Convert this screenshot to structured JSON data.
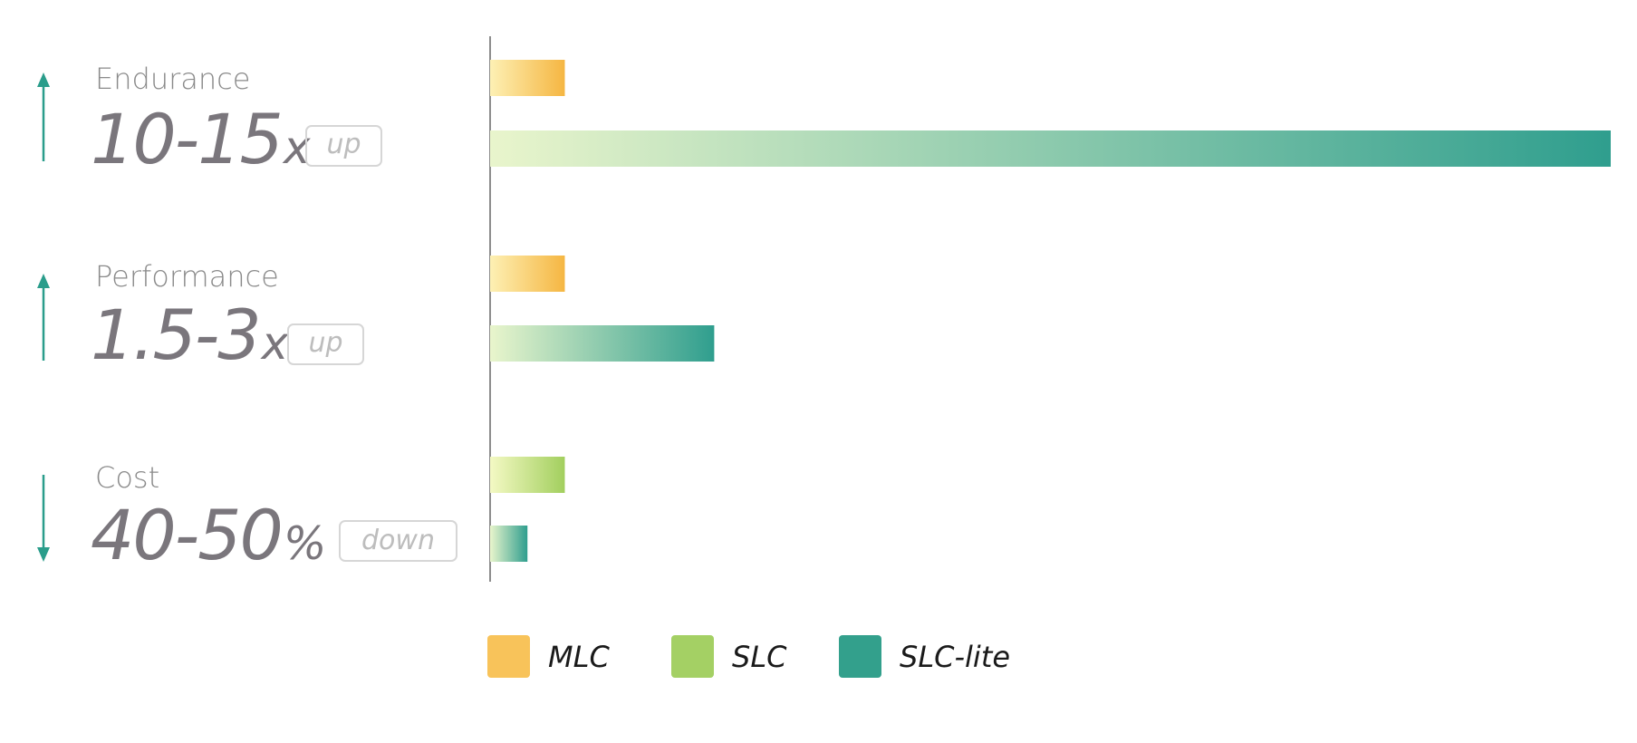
{
  "chart_data": {
    "type": "bar",
    "orientation": "horizontal",
    "categories": [
      "Endurance",
      "Performance",
      "Cost"
    ],
    "series": [
      {
        "name": "MLC",
        "values": [
          1,
          1,
          null
        ]
      },
      {
        "name": "SLC",
        "values": [
          null,
          null,
          1
        ]
      },
      {
        "name": "SLC-lite",
        "values": [
          15,
          3,
          0.5
        ]
      }
    ],
    "xlim": [
      0,
      15
    ],
    "grid": false,
    "legend_position": "bottom",
    "metrics": [
      {
        "label": "Endurance",
        "value": "10-15",
        "unit": "x",
        "direction": "up"
      },
      {
        "label": "Performance",
        "value": "1.5-3",
        "unit": "x",
        "direction": "up"
      },
      {
        "label": "Cost",
        "value": "40-50",
        "unit": "%",
        "direction": "down"
      }
    ],
    "bars": [
      {
        "category": "Endurance",
        "series": "MLC",
        "value": 1
      },
      {
        "category": "Endurance",
        "series": "SLC-lite",
        "value": 15
      },
      {
        "category": "Performance",
        "series": "MLC",
        "value": 1
      },
      {
        "category": "Performance",
        "series": "SLC-lite",
        "value": 3
      },
      {
        "category": "Cost",
        "series": "SLC",
        "value": 1
      },
      {
        "category": "Cost",
        "series": "SLC-lite",
        "value": 0.5
      }
    ],
    "legend": [
      {
        "name": "MLC",
        "color": "#f8c35a"
      },
      {
        "name": "SLC",
        "color": "#a4d064"
      },
      {
        "name": "SLC-lite",
        "color": "#33a08c"
      }
    ]
  },
  "colors": {
    "mlc_start": "#fdf0b4",
    "mlc_end": "#f5b642",
    "slc_start": "#f4f9c4",
    "slc_end": "#a2cf5e",
    "slclite_start": "#e9f5cc",
    "slclite_end": "#2f9e8e",
    "arrow": "#2a9d8b",
    "axis": "#666666",
    "badge_border": "#d6d6d6"
  }
}
